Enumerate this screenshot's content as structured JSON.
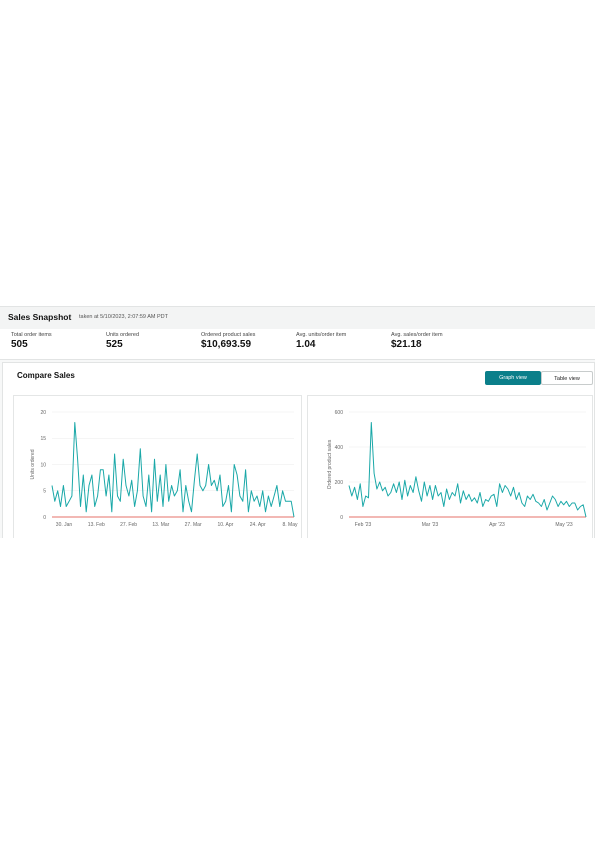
{
  "snapshot": {
    "title": "Sales Snapshot",
    "taken_at": "taken at 5/10/2023, 2:07:59 AM PDT"
  },
  "metrics": [
    {
      "label": "Total order items",
      "value": "505"
    },
    {
      "label": "Units ordered",
      "value": "525"
    },
    {
      "label": "Ordered product sales",
      "value": "$10,693.59"
    },
    {
      "label": "Avg. units/order item",
      "value": "1.04"
    },
    {
      "label": "Avg. sales/order item",
      "value": "$21.18"
    }
  ],
  "compare": {
    "title": "Compare Sales",
    "graph_view_label": "Graph view",
    "table_view_label": "Table view"
  },
  "colors": {
    "line": "#1aa8a8",
    "baseline": "#e0453a",
    "accent": "#0b7f8a"
  },
  "chart_data": [
    {
      "type": "line",
      "ylabel": "Units ordered",
      "ylim": [
        0,
        20
      ],
      "yticks": [
        0,
        5,
        10,
        15,
        20
      ],
      "xticks": [
        "30. Jan",
        "13. Feb",
        "27. Feb",
        "13. Mar",
        "27. Mar",
        "10. Apr",
        "24. Apr",
        "8. May"
      ],
      "grid": true,
      "series": [
        {
          "values": [
            6,
            3,
            5,
            2,
            6,
            2,
            3,
            4,
            18,
            11,
            2,
            8,
            1,
            6,
            8,
            2,
            4,
            9,
            9,
            4,
            8,
            1,
            12,
            4,
            3,
            11,
            6,
            4,
            7,
            2,
            5,
            13,
            4,
            2,
            8,
            1,
            11,
            3,
            8,
            2,
            10,
            3,
            6,
            4,
            5,
            9,
            1,
            6,
            3,
            1,
            7,
            12,
            6,
            5,
            6,
            10,
            6,
            7,
            5,
            8,
            2,
            3,
            6,
            1,
            10,
            8,
            4,
            3,
            9,
            1,
            5,
            3,
            4,
            2,
            5,
            1,
            4,
            2,
            4,
            6,
            2,
            5,
            3,
            3,
            3,
            0
          ]
        },
        {
          "values": [
            0,
            0,
            0,
            0,
            0,
            0,
            0,
            0,
            0,
            0,
            0,
            0,
            0,
            0,
            0,
            0,
            0,
            0,
            0,
            0,
            0,
            0,
            0,
            0,
            0,
            0,
            0,
            0,
            0,
            0,
            0,
            0,
            0,
            0,
            0,
            0,
            0,
            0,
            0,
            0,
            0,
            0,
            0,
            0,
            0,
            0,
            0,
            0,
            0,
            0,
            0,
            0,
            0,
            0,
            0,
            0,
            0,
            0,
            0,
            0,
            0,
            0,
            0,
            0,
            0,
            0,
            0,
            0,
            0,
            0,
            0,
            0,
            0,
            0,
            0,
            0,
            0,
            0,
            0,
            0,
            0,
            0,
            0,
            0,
            0,
            0
          ]
        }
      ]
    },
    {
      "type": "line",
      "ylabel": "Ordered product sales",
      "ylim": [
        0,
        600
      ],
      "yticks": [
        0,
        200,
        400,
        600
      ],
      "xticks": [
        "Feb '23",
        "Mar '23",
        "Apr '23",
        "May '23"
      ],
      "grid": true,
      "series": [
        {
          "values": [
            180,
            120,
            170,
            100,
            190,
            60,
            120,
            110,
            540,
            250,
            160,
            200,
            150,
            170,
            120,
            140,
            190,
            140,
            200,
            100,
            210,
            120,
            180,
            140,
            230,
            150,
            90,
            200,
            120,
            180,
            100,
            180,
            120,
            140,
            60,
            160,
            100,
            140,
            120,
            190,
            80,
            150,
            100,
            130,
            90,
            110,
            80,
            140,
            60,
            100,
            90,
            120,
            130,
            60,
            190,
            140,
            180,
            160,
            120,
            170,
            100,
            140,
            80,
            60,
            120,
            100,
            130,
            90,
            80,
            60,
            100,
            40,
            80,
            120,
            100,
            60,
            90,
            70,
            90,
            60,
            80,
            80,
            40,
            60,
            70,
            0
          ]
        },
        {
          "values": [
            0,
            0,
            0,
            0,
            0,
            0,
            0,
            0,
            0,
            0,
            0,
            0,
            0,
            0,
            0,
            0,
            0,
            0,
            0,
            0,
            0,
            0,
            0,
            0,
            0,
            0,
            0,
            0,
            0,
            0,
            0,
            0,
            0,
            0,
            0,
            0,
            0,
            0,
            0,
            0,
            0,
            0,
            0,
            0,
            0,
            0,
            0,
            0,
            0,
            0,
            0,
            0,
            0,
            0,
            0,
            0,
            0,
            0,
            0,
            0,
            0,
            0,
            0,
            0,
            0,
            0,
            0,
            0,
            0,
            0,
            0,
            0,
            0,
            0,
            0,
            0,
            0,
            0,
            0,
            0,
            0,
            0,
            0,
            0,
            0,
            0
          ]
        }
      ]
    }
  ]
}
